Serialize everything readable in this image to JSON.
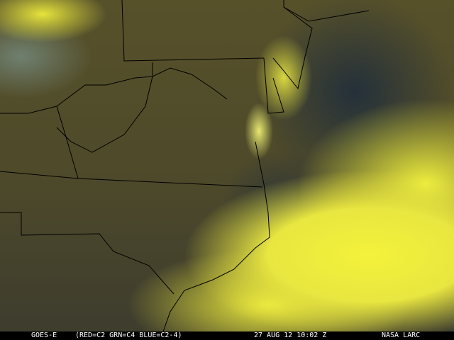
{
  "caption": {
    "satellite": "GOES-E",
    "channels": "(RED=C2 GRN=C4 BLUE=C2-4)",
    "datetime": "27 AUG 12 10:02 Z",
    "credit": "NASA LARC"
  },
  "colors": {
    "cloud": "#f0ee3a",
    "land": "#4e4a2a",
    "ocean": "#2a3238",
    "borders": "#000000"
  }
}
